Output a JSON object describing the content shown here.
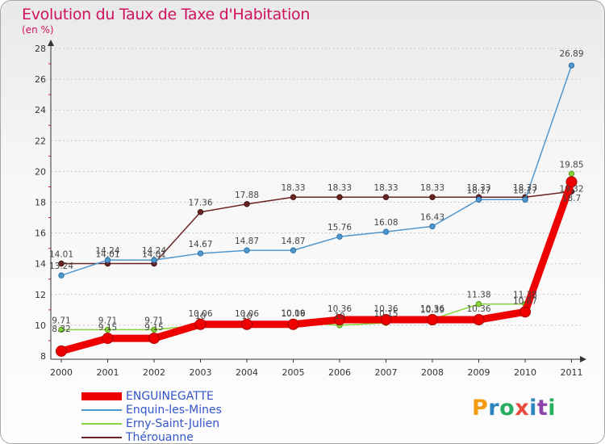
{
  "header": {
    "title": "Evolution du Taux de Taxe d'Habitation",
    "subtitle": "(en %)"
  },
  "colors": {
    "title": "#d0115d",
    "legend_text": "#3355cc",
    "axis": "#333333",
    "grid": "#c8c8c8"
  },
  "chart_data": {
    "type": "line",
    "title": "Evolution du Taux de Taxe d'Habitation",
    "subtitle": "(en %)",
    "x": [
      "2000",
      "2001",
      "2002",
      "2003",
      "2004",
      "2005",
      "2006",
      "2007",
      "2008",
      "2009",
      "2010",
      "2011"
    ],
    "ylim": [
      8,
      28
    ],
    "yticks": [
      "8",
      "10",
      "12",
      "14",
      "16",
      "18",
      "20",
      "22",
      "24",
      "26",
      "28"
    ],
    "grid": "horizontal dotted",
    "legend_position": "bottom-left",
    "series": [
      {
        "name": "ENGUINEGATTE",
        "color": "#ee0000",
        "values": [
          8.32,
          9.15,
          9.15,
          10.06,
          10.06,
          10.06,
          10.36,
          10.36,
          10.36,
          10.36,
          10.87,
          19.32
        ],
        "labels": [
          "8.32",
          "9.15",
          "9.15",
          "10.06",
          "10.06",
          "10.06",
          "10.36",
          "10.36",
          "10.36",
          "10.36",
          "10.87",
          "19.32"
        ]
      },
      {
        "name": "Enquin-les-Mines",
        "color": "#4f97cf",
        "values": [
          13.24,
          14.24,
          14.24,
          14.67,
          14.87,
          14.87,
          15.76,
          16.08,
          16.43,
          18.17,
          18.17,
          26.89
        ],
        "labels": [
          "13.24",
          "14.24",
          "14.24",
          "14.67",
          "14.87",
          "14.87",
          "15.76",
          "16.08",
          "16.43",
          "18.17",
          "18.17",
          "26.89"
        ]
      },
      {
        "name": "Erny-Saint-Julien",
        "color": "#88d33a",
        "values": [
          9.71,
          9.71,
          9.71,
          10,
          10,
          10.19,
          10,
          10.15,
          10.39,
          11.38,
          11.38,
          19.85
        ],
        "labels": [
          "9.71",
          "9.71",
          "9.71",
          "10",
          "10",
          "10.19",
          "10",
          "10.15",
          "10.39",
          "11.38",
          "11.38",
          "19.85"
        ]
      },
      {
        "name": "Thérouanne",
        "color": "#6b2424",
        "values": [
          14.01,
          14.01,
          14.01,
          17.36,
          17.88,
          18.33,
          18.33,
          18.33,
          18.33,
          18.33,
          18.33,
          18.7
        ],
        "labels": [
          "14.01",
          "14.01",
          "14.01",
          "17.36",
          "17.88",
          "18.33",
          "18.33",
          "18.33",
          "18.33",
          "18.33",
          "18.33",
          "18.7"
        ]
      }
    ]
  },
  "logo": {
    "letters": [
      "P",
      "r",
      "o",
      "x",
      "i",
      "t",
      "i"
    ],
    "colors": [
      "#f39c12",
      "#2e86c1",
      "#27ae60",
      "#e74c3c",
      "#2e86c1",
      "#8e44ad",
      "#27ae60"
    ]
  }
}
